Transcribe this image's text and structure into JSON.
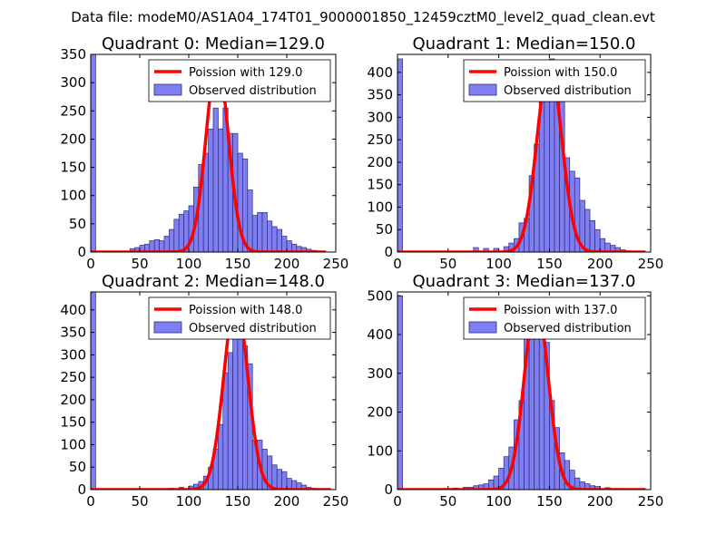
{
  "figure_title": "Data file: modeM0/AS1A04_174T01_9000001850_12459cztM0_level2_quad_clean.evt",
  "colors": {
    "bar_fill": "#7f7ff2",
    "bar_edge": "#2b2b7a",
    "curve": "#ff0000",
    "axes": "#000000"
  },
  "chart_data": [
    {
      "type": "bar",
      "title": "Quadrant 0: Median=129.0",
      "median": 129.0,
      "xlim": [
        0,
        250
      ],
      "ylim": [
        0,
        350
      ],
      "xticks": [
        0,
        50,
        100,
        150,
        200,
        250
      ],
      "yticks": [
        0,
        50,
        100,
        150,
        200,
        250,
        300,
        350
      ],
      "bin_width": 5,
      "legend": {
        "curve_label": "Poission with 129.0",
        "bars_label": "Observed distribution",
        "position": "top-right"
      },
      "bins": [
        {
          "x": 0,
          "y": 350
        },
        {
          "x": 40,
          "y": 6
        },
        {
          "x": 45,
          "y": 8
        },
        {
          "x": 50,
          "y": 12
        },
        {
          "x": 55,
          "y": 14
        },
        {
          "x": 60,
          "y": 20
        },
        {
          "x": 65,
          "y": 22
        },
        {
          "x": 70,
          "y": 20
        },
        {
          "x": 75,
          "y": 28
        },
        {
          "x": 80,
          "y": 40
        },
        {
          "x": 85,
          "y": 58
        },
        {
          "x": 90,
          "y": 67
        },
        {
          "x": 95,
          "y": 73
        },
        {
          "x": 100,
          "y": 82
        },
        {
          "x": 105,
          "y": 115
        },
        {
          "x": 110,
          "y": 155
        },
        {
          "x": 115,
          "y": 175
        },
        {
          "x": 120,
          "y": 218
        },
        {
          "x": 125,
          "y": 255
        },
        {
          "x": 130,
          "y": 218
        },
        {
          "x": 135,
          "y": 255
        },
        {
          "x": 140,
          "y": 210
        },
        {
          "x": 145,
          "y": 210
        },
        {
          "x": 150,
          "y": 175
        },
        {
          "x": 155,
          "y": 165
        },
        {
          "x": 160,
          "y": 110
        },
        {
          "x": 165,
          "y": 65
        },
        {
          "x": 170,
          "y": 70
        },
        {
          "x": 175,
          "y": 70
        },
        {
          "x": 180,
          "y": 55
        },
        {
          "x": 185,
          "y": 45
        },
        {
          "x": 190,
          "y": 40
        },
        {
          "x": 195,
          "y": 28
        },
        {
          "x": 200,
          "y": 20
        },
        {
          "x": 205,
          "y": 14
        },
        {
          "x": 210,
          "y": 10
        },
        {
          "x": 215,
          "y": 8
        },
        {
          "x": 220,
          "y": 5
        },
        {
          "x": 225,
          "y": 3
        },
        {
          "x": 230,
          "y": 2
        }
      ],
      "curve_peak": 338,
      "curve_sigma": 11.4,
      "curve_range": [
        0,
        240
      ]
    },
    {
      "type": "bar",
      "title": "Quadrant 1: Median=150.0",
      "median": 150.0,
      "xlim": [
        0,
        250
      ],
      "ylim": [
        0,
        440
      ],
      "xticks": [
        0,
        50,
        100,
        150,
        200,
        250
      ],
      "yticks": [
        0,
        50,
        100,
        150,
        200,
        250,
        300,
        350,
        400
      ],
      "bin_width": 5,
      "legend": {
        "curve_label": "Poission with 150.0",
        "bars_label": "Observed distribution",
        "position": "top-right"
      },
      "bins": [
        {
          "x": 0,
          "y": 430
        },
        {
          "x": 75,
          "y": 10
        },
        {
          "x": 85,
          "y": 8
        },
        {
          "x": 95,
          "y": 8
        },
        {
          "x": 105,
          "y": 12
        },
        {
          "x": 110,
          "y": 20
        },
        {
          "x": 115,
          "y": 30
        },
        {
          "x": 120,
          "y": 65
        },
        {
          "x": 125,
          "y": 75
        },
        {
          "x": 130,
          "y": 170
        },
        {
          "x": 135,
          "y": 240
        },
        {
          "x": 140,
          "y": 335
        },
        {
          "x": 145,
          "y": 350
        },
        {
          "x": 150,
          "y": 430
        },
        {
          "x": 155,
          "y": 360
        },
        {
          "x": 160,
          "y": 350
        },
        {
          "x": 165,
          "y": 210
        },
        {
          "x": 170,
          "y": 180
        },
        {
          "x": 175,
          "y": 165
        },
        {
          "x": 180,
          "y": 115
        },
        {
          "x": 185,
          "y": 95
        },
        {
          "x": 190,
          "y": 70
        },
        {
          "x": 195,
          "y": 50
        },
        {
          "x": 200,
          "y": 30
        },
        {
          "x": 205,
          "y": 20
        },
        {
          "x": 210,
          "y": 15
        },
        {
          "x": 215,
          "y": 10
        },
        {
          "x": 220,
          "y": 5
        },
        {
          "x": 225,
          "y": 3
        }
      ],
      "curve_peak": 418,
      "curve_sigma": 12.2,
      "curve_range": [
        0,
        245
      ]
    },
    {
      "type": "bar",
      "title": "Quadrant 2: Median=148.0",
      "median": 148.0,
      "xlim": [
        0,
        250
      ],
      "ylim": [
        0,
        440
      ],
      "xticks": [
        0,
        50,
        100,
        150,
        200,
        250
      ],
      "yticks": [
        0,
        50,
        100,
        150,
        200,
        250,
        300,
        350,
        400
      ],
      "bin_width": 5,
      "legend": {
        "curve_label": "Poission with 148.0",
        "bars_label": "Observed distribution",
        "position": "top-right"
      },
      "bins": [
        {
          "x": 0,
          "y": 440
        },
        {
          "x": 80,
          "y": 3
        },
        {
          "x": 90,
          "y": 5
        },
        {
          "x": 100,
          "y": 8
        },
        {
          "x": 105,
          "y": 12
        },
        {
          "x": 110,
          "y": 18
        },
        {
          "x": 115,
          "y": 30
        },
        {
          "x": 120,
          "y": 50
        },
        {
          "x": 125,
          "y": 90
        },
        {
          "x": 130,
          "y": 145
        },
        {
          "x": 135,
          "y": 260
        },
        {
          "x": 140,
          "y": 305
        },
        {
          "x": 145,
          "y": 420
        },
        {
          "x": 150,
          "y": 380
        },
        {
          "x": 155,
          "y": 320
        },
        {
          "x": 160,
          "y": 280
        },
        {
          "x": 165,
          "y": 110
        },
        {
          "x": 170,
          "y": 110
        },
        {
          "x": 175,
          "y": 90
        },
        {
          "x": 180,
          "y": 75
        },
        {
          "x": 185,
          "y": 55
        },
        {
          "x": 190,
          "y": 45
        },
        {
          "x": 195,
          "y": 40
        },
        {
          "x": 200,
          "y": 25
        },
        {
          "x": 205,
          "y": 20
        },
        {
          "x": 210,
          "y": 15
        },
        {
          "x": 215,
          "y": 10
        },
        {
          "x": 220,
          "y": 5
        },
        {
          "x": 225,
          "y": 3
        }
      ],
      "curve_peak": 420,
      "curve_sigma": 12.2,
      "curve_range": [
        0,
        245
      ]
    },
    {
      "type": "bar",
      "title": "Quadrant 3: Median=137.0",
      "median": 137.0,
      "xlim": [
        0,
        250
      ],
      "ylim": [
        0,
        510
      ],
      "xticks": [
        0,
        50,
        100,
        150,
        200,
        250
      ],
      "yticks": [
        0,
        100,
        200,
        300,
        400,
        500
      ],
      "bin_width": 5,
      "legend": {
        "curve_label": "Poission with 137.0",
        "bars_label": "Observed distribution",
        "position": "top-right"
      },
      "bins": [
        {
          "x": 0,
          "y": 500
        },
        {
          "x": 45,
          "y": 3
        },
        {
          "x": 55,
          "y": 4
        },
        {
          "x": 65,
          "y": 6
        },
        {
          "x": 70,
          "y": 6
        },
        {
          "x": 75,
          "y": 10
        },
        {
          "x": 80,
          "y": 12
        },
        {
          "x": 85,
          "y": 15
        },
        {
          "x": 90,
          "y": 25
        },
        {
          "x": 95,
          "y": 35
        },
        {
          "x": 100,
          "y": 55
        },
        {
          "x": 105,
          "y": 85
        },
        {
          "x": 110,
          "y": 110
        },
        {
          "x": 115,
          "y": 180
        },
        {
          "x": 120,
          "y": 230
        },
        {
          "x": 125,
          "y": 440
        },
        {
          "x": 130,
          "y": 470
        },
        {
          "x": 135,
          "y": 480
        },
        {
          "x": 140,
          "y": 440
        },
        {
          "x": 145,
          "y": 380
        },
        {
          "x": 150,
          "y": 230
        },
        {
          "x": 155,
          "y": 160
        },
        {
          "x": 160,
          "y": 95
        },
        {
          "x": 165,
          "y": 75
        },
        {
          "x": 170,
          "y": 50
        },
        {
          "x": 175,
          "y": 30
        },
        {
          "x": 180,
          "y": 20
        },
        {
          "x": 185,
          "y": 15
        },
        {
          "x": 190,
          "y": 10
        },
        {
          "x": 195,
          "y": 8
        },
        {
          "x": 205,
          "y": 5
        },
        {
          "x": 215,
          "y": 3
        }
      ],
      "curve_peak": 485,
      "curve_sigma": 11.7,
      "curve_range": [
        0,
        245
      ]
    }
  ]
}
